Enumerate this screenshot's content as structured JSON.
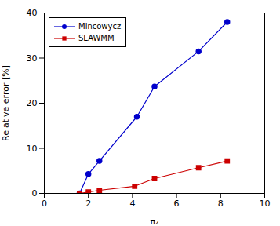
{
  "chart_data": {
    "type": "line",
    "xlabel": "π₂",
    "ylabel": "Relative error [%]",
    "series": [
      {
        "name": "Mincowycz",
        "color": "#0000cc",
        "marker": "circle",
        "x": [
          1.6,
          2.0,
          2.5,
          4.2,
          5.0,
          7.0,
          8.3
        ],
        "values": [
          0.0,
          4.3,
          7.2,
          17.0,
          23.7,
          31.5,
          38.0
        ]
      },
      {
        "name": "SLAWMM",
        "color": "#cc0000",
        "marker": "square",
        "x": [
          1.6,
          2.0,
          2.5,
          4.1,
          5.0,
          7.0,
          8.3
        ],
        "values": [
          0.0,
          0.3,
          0.7,
          1.6,
          3.3,
          5.7,
          7.2
        ]
      }
    ],
    "xlim": [
      0,
      10
    ],
    "ylim": [
      0,
      40
    ],
    "xticks": [
      0,
      2,
      4,
      6,
      8,
      10
    ],
    "yticks": [
      0,
      10,
      20,
      30,
      40
    ],
    "grid": false,
    "legend": "upper left"
  }
}
